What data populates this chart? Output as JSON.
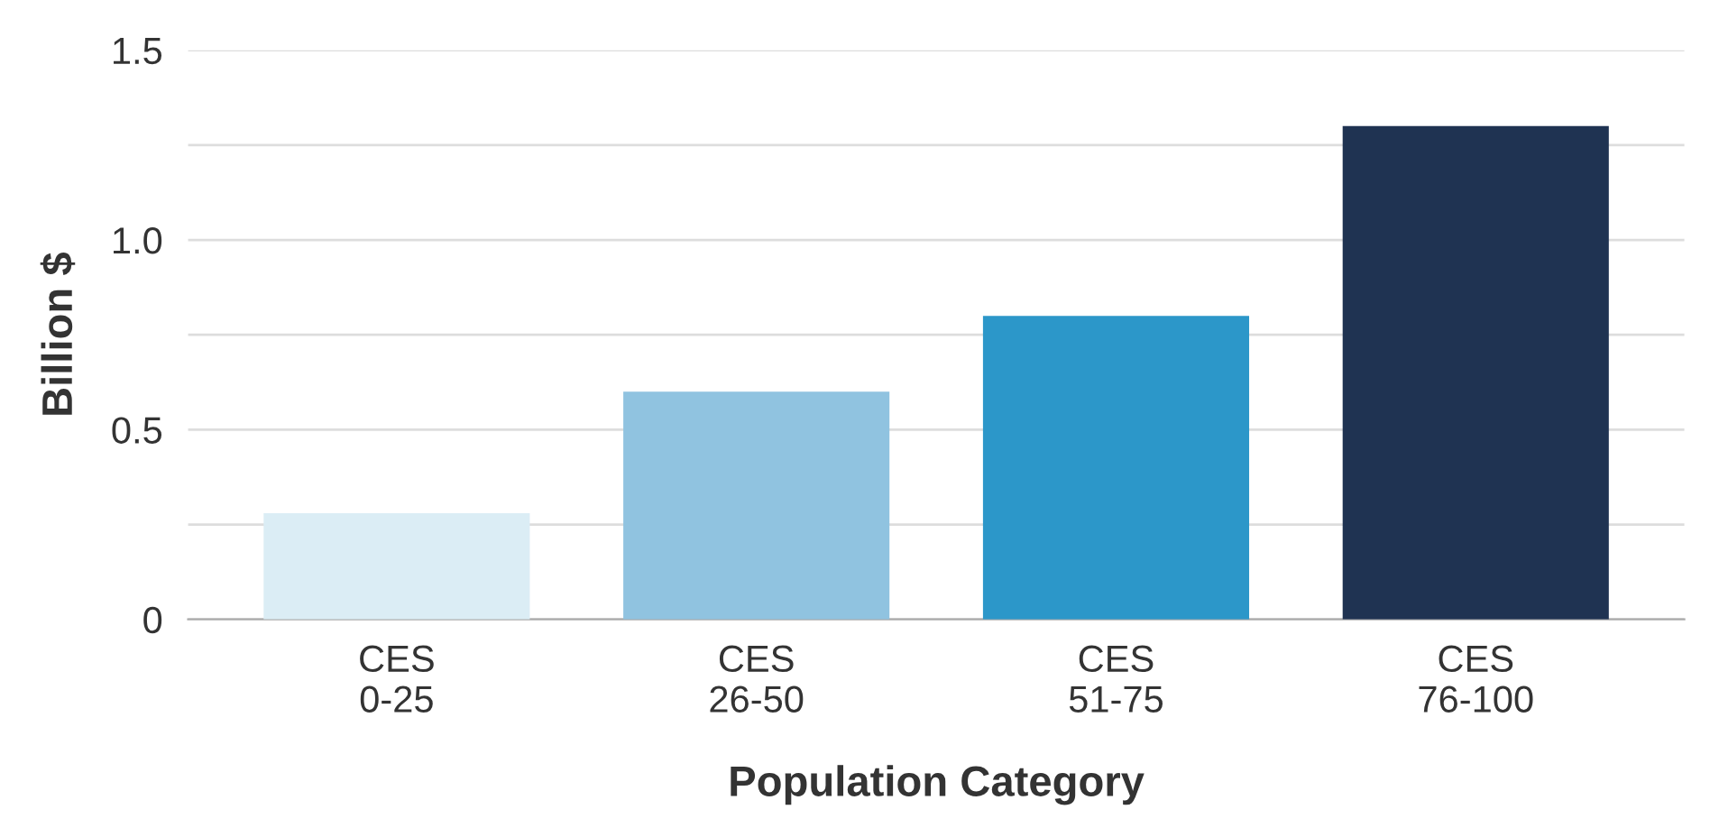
{
  "chart_data": {
    "type": "bar",
    "xlabel": "Population Category",
    "ylabel": "Billion $",
    "categories": [
      "CES\n0-25",
      "CES\n26-50",
      "CES\n51-75",
      "CES\n76-100"
    ],
    "values": [
      0.28,
      0.6,
      0.8,
      1.3
    ],
    "colors": [
      "#dbedf5",
      "#90c3e0",
      "#2c97c9",
      "#1f3352"
    ],
    "ylim": [
      0,
      1.5
    ],
    "yticks": [
      {
        "value": 0,
        "label": "0"
      },
      {
        "value": 0.25,
        "label": null
      },
      {
        "value": 0.5,
        "label": "0.5"
      },
      {
        "value": 0.75,
        "label": null
      },
      {
        "value": 1.0,
        "label": "1.0"
      },
      {
        "value": 1.25,
        "label": null
      },
      {
        "value": 1.5,
        "label": "1.5"
      }
    ],
    "grid": "y"
  }
}
